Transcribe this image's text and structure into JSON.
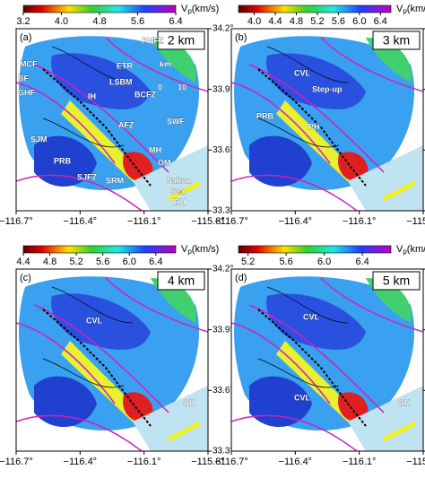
{
  "colorbar_label": {
    "symbol": "V",
    "subscript": "p",
    "unit": "(km/s)"
  },
  "map_axes": {
    "xlim": [
      -116.7,
      -115.8
    ],
    "ylim": [
      33.3,
      34.2
    ],
    "xticks": [
      {
        "value": -116.7,
        "label": "−116.7°"
      },
      {
        "value": -116.4,
        "label": "−116.4°"
      },
      {
        "value": -116.1,
        "label": "−116.1°"
      },
      {
        "value": -115.8,
        "label": "−115.8°"
      }
    ],
    "yticks": [
      {
        "value": 33.3,
        "label": "33.3°"
      },
      {
        "value": 33.6,
        "label": "33.6°"
      },
      {
        "value": 33.9,
        "label": "33.9°"
      },
      {
        "value": 34.2,
        "label": "34.2°"
      }
    ]
  },
  "panels": [
    {
      "panel_label": "(a)",
      "depth": "2 km",
      "colorbar": {
        "lim": [
          3.2,
          6.4
        ],
        "ticks": [
          3.2,
          {
            "value": 4,
            "label": "4.0"
          },
          4.8,
          5.6,
          6.4
        ]
      },
      "labels": [
        "PMFZ",
        "MCF",
        "ETR",
        "LSBM",
        "BCFZ",
        "BF",
        "GHF",
        "IH",
        "SWF",
        "SJM",
        "AFZ",
        "MH",
        "OM",
        "PRB",
        "SJFZ",
        "SRM",
        "Salton",
        "Sea",
        "DH",
        "km",
        "0",
        "10"
      ]
    },
    {
      "panel_label": "(b)",
      "depth": "3 km",
      "colorbar": {
        "lim": [
          3.7,
          6.6
        ],
        "ticks": [
          {
            "value": 4,
            "label": "4.0"
          },
          4.4,
          4.8,
          5.2,
          5.6,
          {
            "value": 6,
            "label": "6.0"
          },
          6.4
        ]
      },
      "labels": [
        "CVL",
        "Step-up",
        "PRB",
        "PH"
      ]
    },
    {
      "panel_label": "(c)",
      "depth": "4 km",
      "colorbar": {
        "lim": [
          4.4,
          6.7
        ],
        "ticks": [
          4.4,
          4.8,
          5.2,
          5.6,
          {
            "value": 6,
            "label": "6.0"
          },
          6.4
        ]
      },
      "labels": [
        "CVL",
        "OH"
      ]
    },
    {
      "panel_label": "(d)",
      "depth": "5 km",
      "colorbar": {
        "lim": [
          5.1,
          6.7
        ],
        "ticks": [
          5.2,
          5.6,
          {
            "value": 6,
            "label": "6.0"
          },
          6.4
        ]
      },
      "labels": [
        "CVL",
        "CVL",
        "OH"
      ]
    }
  ]
}
